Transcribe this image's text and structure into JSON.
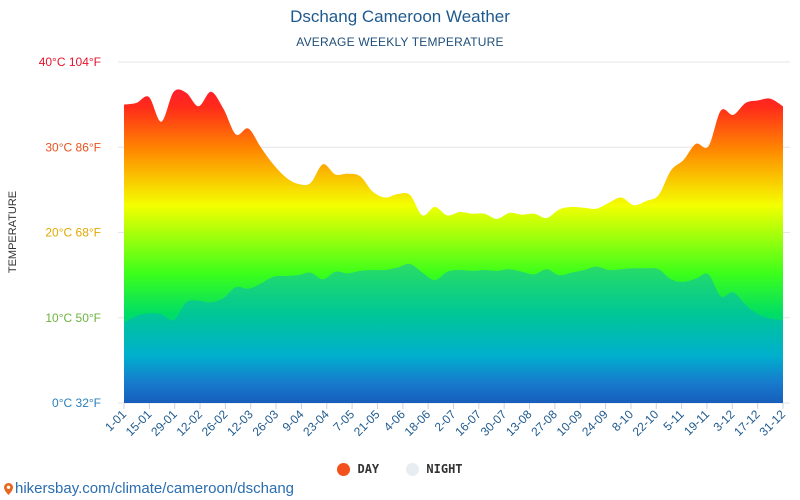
{
  "chart_data": {
    "type": "area",
    "title": "Dschang Cameroon Weather",
    "subtitle": "AVERAGE WEEKLY TEMPERATURE",
    "ylabel": "TEMPERATURE",
    "ylim": [
      0,
      40
    ],
    "y_ticks": [
      {
        "value": 0,
        "label": "0°C 32°F",
        "color": "#2a7fb8"
      },
      {
        "value": 10,
        "label": "10°C 50°F",
        "color": "#6db33f"
      },
      {
        "value": 20,
        "label": "20°C 68°F",
        "color": "#e0a800"
      },
      {
        "value": 30,
        "label": "30°C 86°F",
        "color": "#e8521e"
      },
      {
        "value": 40,
        "label": "40°C 104°F",
        "color": "#e3132c"
      }
    ],
    "x_labels": [
      "1-01",
      "15-01",
      "29-01",
      "12-02",
      "26-02",
      "12-03",
      "26-03",
      "9-04",
      "23-04",
      "7-05",
      "21-05",
      "4-06",
      "18-06",
      "2-07",
      "16-07",
      "30-07",
      "13-08",
      "27-08",
      "10-09",
      "24-09",
      "8-10",
      "22-10",
      "5-11",
      "19-11",
      "3-12",
      "17-12",
      "31-12"
    ],
    "series": [
      {
        "name": "DAY",
        "color": "#f2501c",
        "values": [
          35,
          35.2,
          35.9,
          33,
          36.5,
          36.4,
          34.8,
          36.5,
          34.5,
          31.5,
          32.2,
          30,
          28,
          26.5,
          25.7,
          25.8,
          28,
          26.8,
          26.9,
          26.6,
          24.8,
          24.1,
          24.5,
          24.4,
          22,
          23,
          22,
          22.4,
          22.2,
          22.2,
          21.6,
          22.3,
          22.1,
          22.2,
          21.7,
          22.7,
          23,
          22.9,
          22.8,
          23.5,
          24.1,
          23.2,
          23.7,
          24.4,
          27.3,
          28.5,
          30.4,
          30.1,
          34.3,
          33.8,
          35.2,
          35.5,
          35.7,
          34.8
        ]
      },
      {
        "name": "NIGHT",
        "color": "#e8edf2",
        "values": [
          9.4,
          10.2,
          10.5,
          10.4,
          9.7,
          11.8,
          12,
          11.8,
          12.3,
          13.6,
          13.4,
          14,
          14.8,
          14.9,
          15,
          15.3,
          14.5,
          15.4,
          15.2,
          15.5,
          15.6,
          15.6,
          15.9,
          16.3,
          15.3,
          14.4,
          15.4,
          15.6,
          15.5,
          15.6,
          15.5,
          15.7,
          15.4,
          15.1,
          15.7,
          15,
          15.3,
          15.6,
          16,
          15.6,
          15.7,
          15.8,
          15.8,
          15.7,
          14.5,
          14.2,
          14.6,
          15.1,
          12.5,
          13,
          11.5,
          10.4,
          9.9,
          9.7
        ]
      }
    ],
    "legend_position": "bottom",
    "grid": true
  },
  "footer": {
    "source_text": "hikersbay.com/climate/cameroon/dschang"
  }
}
